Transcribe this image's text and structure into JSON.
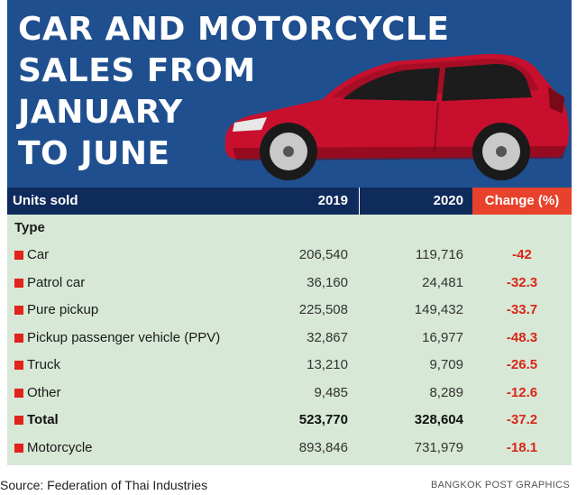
{
  "header": {
    "title_lines": [
      "CAR AND MOTORCYCLE",
      "SALES FROM",
      "JANUARY",
      "TO JUNE"
    ]
  },
  "colors": {
    "header_bg": "#1f4f8f",
    "table_head_bg": "#0f2b5c",
    "change_head_bg": "#e8412c",
    "table_body_bg": "#d7e8d6",
    "bullet": "#e0231b",
    "change_text": "#d8261a",
    "car_body": "#c8102e"
  },
  "icons": {
    "illustration": "red-hatchback-car",
    "bullet": "red-square-bullet"
  },
  "chart_data": {
    "type": "table",
    "title": "CAR AND MOTORCYCLE SALES FROM JANUARY TO JUNE",
    "columns": [
      "Units sold",
      "2019",
      "2020",
      "Change (%)"
    ],
    "group_label": "Type",
    "rows": [
      {
        "type": "Car",
        "y2019": "206,540",
        "y2020": "119,716",
        "change": "-42"
      },
      {
        "type": "Patrol car",
        "y2019": "36,160",
        "y2020": "24,481",
        "change": "-32.3"
      },
      {
        "type": "Pure pickup",
        "y2019": "225,508",
        "y2020": "149,432",
        "change": "-33.7"
      },
      {
        "type": "Pickup passenger vehicle (PPV)",
        "y2019": "32,867",
        "y2020": "16,977",
        "change": "-48.3"
      },
      {
        "type": "Truck",
        "y2019": "13,210",
        "y2020": "9,709",
        "change": "-26.5"
      },
      {
        "type": "Other",
        "y2019": "9,485",
        "y2020": "8,289",
        "change": "-12.6"
      },
      {
        "type": "Total",
        "y2019": "523,770",
        "y2020": "328,604",
        "change": "-37.2",
        "bold": true
      },
      {
        "type": "Motorcycle",
        "y2019": "893,846",
        "y2020": "731,979",
        "change": "-18.1"
      }
    ]
  },
  "footer": {
    "source": "Source: Federation of Thai Industries",
    "credit": "BANGKOK POST GRAPHICS"
  }
}
